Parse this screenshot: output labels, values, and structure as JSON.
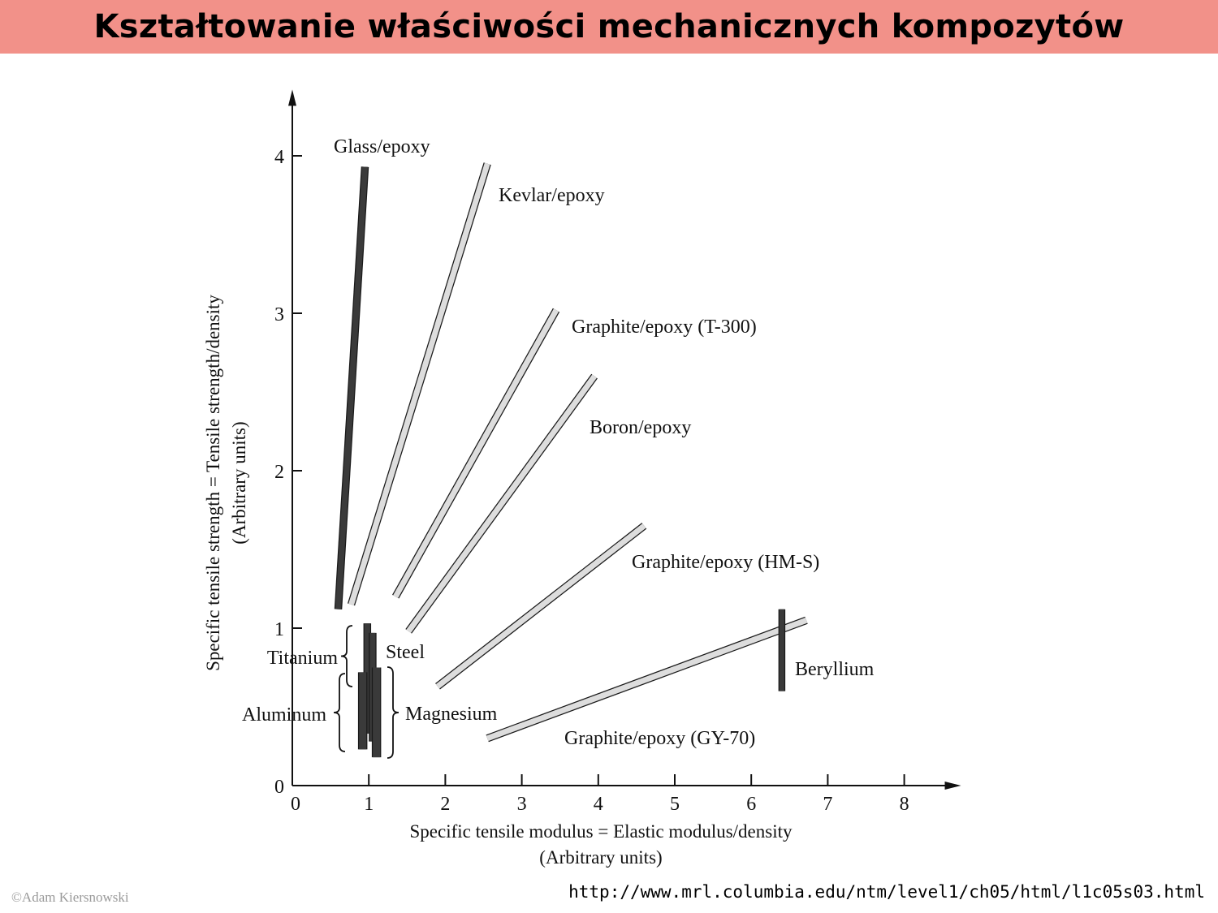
{
  "header": {
    "title": "Kształtowanie właściwości mechanicznych kompozytów"
  },
  "footer": {
    "copyright": "©Adam Kiersnowski",
    "source_url": "http://www.mrl.columbia.edu/ntm/level1/ch05/html/l1c05s03.html"
  },
  "chart_data": {
    "type": "line",
    "title": "",
    "xlabel": "Specific tensile modulus = Elastic modulus/density",
    "xlabel_units": "(Arbitrary units)",
    "ylabel": "Specific tensile strength = Tensile strength/density",
    "ylabel_units": "(Arbitrary units)",
    "xlim": [
      0,
      8.7
    ],
    "ylim": [
      0,
      4.4
    ],
    "x_ticks": [
      "0",
      "1",
      "2",
      "3",
      "4",
      "5",
      "6",
      "7",
      "8"
    ],
    "y_ticks": [
      "0",
      "1",
      "2",
      "3",
      "4"
    ],
    "grid": false,
    "colors": {
      "dark_band": "#3a3a3a",
      "light_band": "#dddddd",
      "outline": "#1a1a1a",
      "axis": "#111111"
    },
    "series": [
      {
        "name": "Glass/epoxy",
        "shade": "dark",
        "points": [
          [
            0.6,
            1.12
          ],
          [
            0.95,
            3.93
          ]
        ]
      },
      {
        "name": "Kevlar/epoxy",
        "shade": "light",
        "points": [
          [
            0.77,
            1.15
          ],
          [
            2.55,
            3.95
          ]
        ]
      },
      {
        "name": "Graphite/epoxy (T-300)",
        "shade": "light",
        "points": [
          [
            1.35,
            1.2
          ],
          [
            3.45,
            3.02
          ]
        ]
      },
      {
        "name": "Boron/epoxy",
        "shade": "light",
        "points": [
          [
            1.52,
            0.98
          ],
          [
            3.95,
            2.6
          ]
        ]
      },
      {
        "name": "Graphite/epoxy (HM-S)",
        "shade": "light",
        "points": [
          [
            1.9,
            0.63
          ],
          [
            4.6,
            1.65
          ]
        ]
      },
      {
        "name": "Graphite/epoxy (GY-70)",
        "shade": "light",
        "points": [
          [
            2.55,
            0.3
          ],
          [
            6.72,
            1.05
          ]
        ]
      },
      {
        "name": "Beryllium",
        "shade": "dark",
        "points": [
          [
            6.4,
            0.6
          ],
          [
            6.4,
            1.12
          ]
        ]
      },
      {
        "name": "Titanium",
        "shade": "dark",
        "points": [
          [
            0.98,
            0.33
          ],
          [
            0.98,
            1.03
          ]
        ]
      },
      {
        "name": "Steel",
        "shade": "dark",
        "points": [
          [
            1.05,
            0.28
          ],
          [
            1.05,
            0.97
          ]
        ]
      },
      {
        "name": "Aluminum",
        "shade": "dark",
        "points": [
          [
            0.92,
            0.23
          ],
          [
            0.92,
            0.72
          ]
        ]
      },
      {
        "name": "Magnesium",
        "shade": "dark",
        "points": [
          [
            1.1,
            0.18
          ],
          [
            1.1,
            0.75
          ]
        ]
      }
    ]
  }
}
